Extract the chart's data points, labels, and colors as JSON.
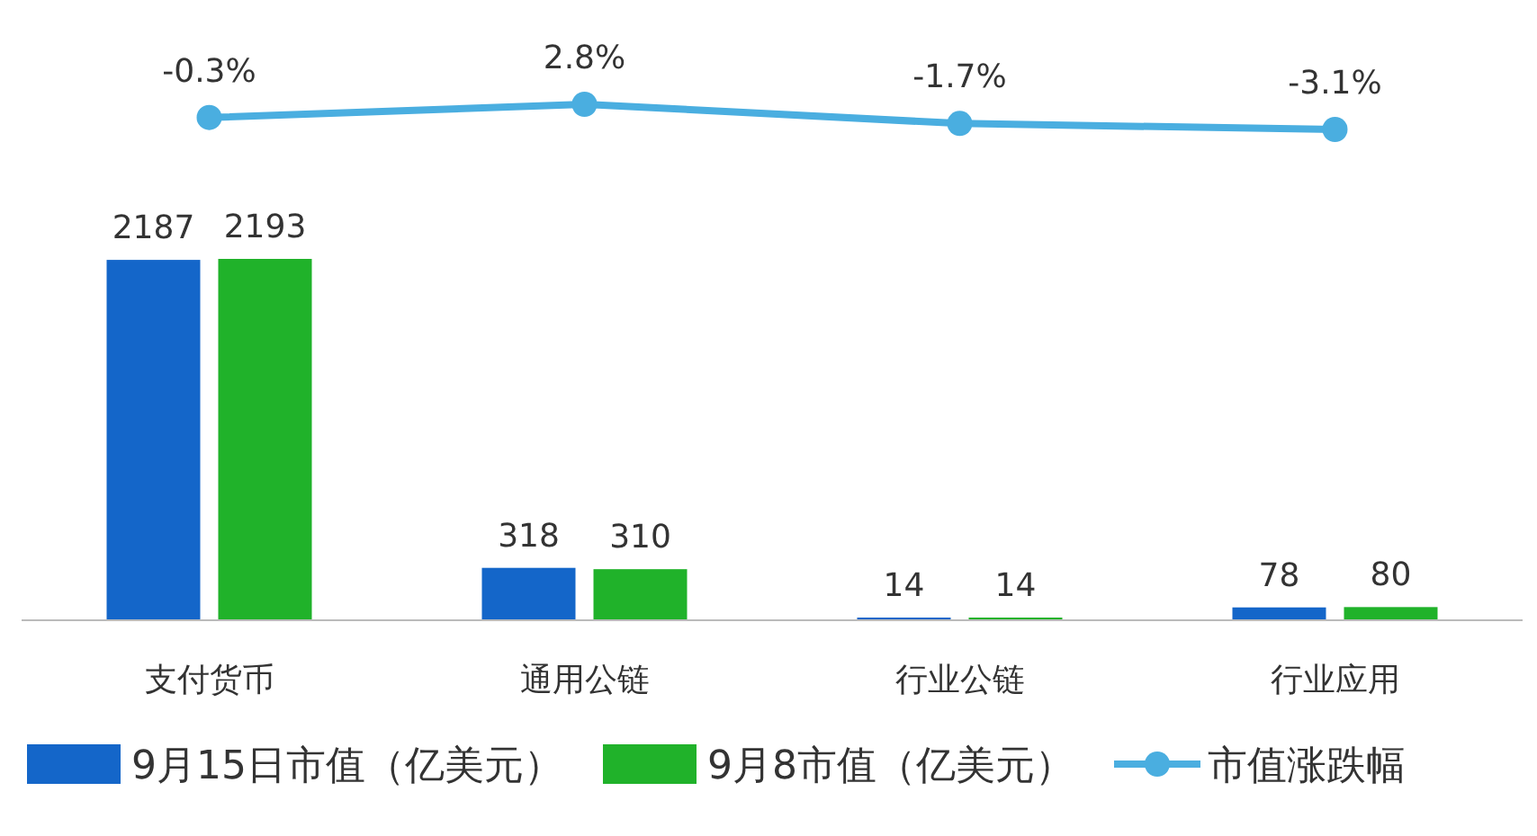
{
  "chart_data": [
    {
      "type": "bar",
      "categories": [
        "支付货币",
        "通用公链",
        "行业公链",
        "行业应用"
      ],
      "series": [
        {
          "name": "9月15日市值（亿美元）",
          "color": "#1466c9",
          "values": [
            2187,
            318,
            14,
            78
          ]
        },
        {
          "name": "9月8市值（亿美元）",
          "color": "#20b22a",
          "values": [
            2193,
            310,
            14,
            80
          ]
        }
      ],
      "data_labels": true,
      "legend": "bottom"
    },
    {
      "type": "line",
      "categories": [
        null,
        null,
        null,
        null
      ],
      "series": [
        {
          "name": "市值涨跌幅",
          "color": "#4aaee0",
          "values": [
            -0.3,
            2.8,
            -1.7,
            -3.1
          ],
          "value_labels": [
            "-0.3%",
            "2.8%",
            "-1.7%",
            "-3.1%"
          ]
        }
      ],
      "marker": "circle",
      "legend": "bottom"
    }
  ]
}
